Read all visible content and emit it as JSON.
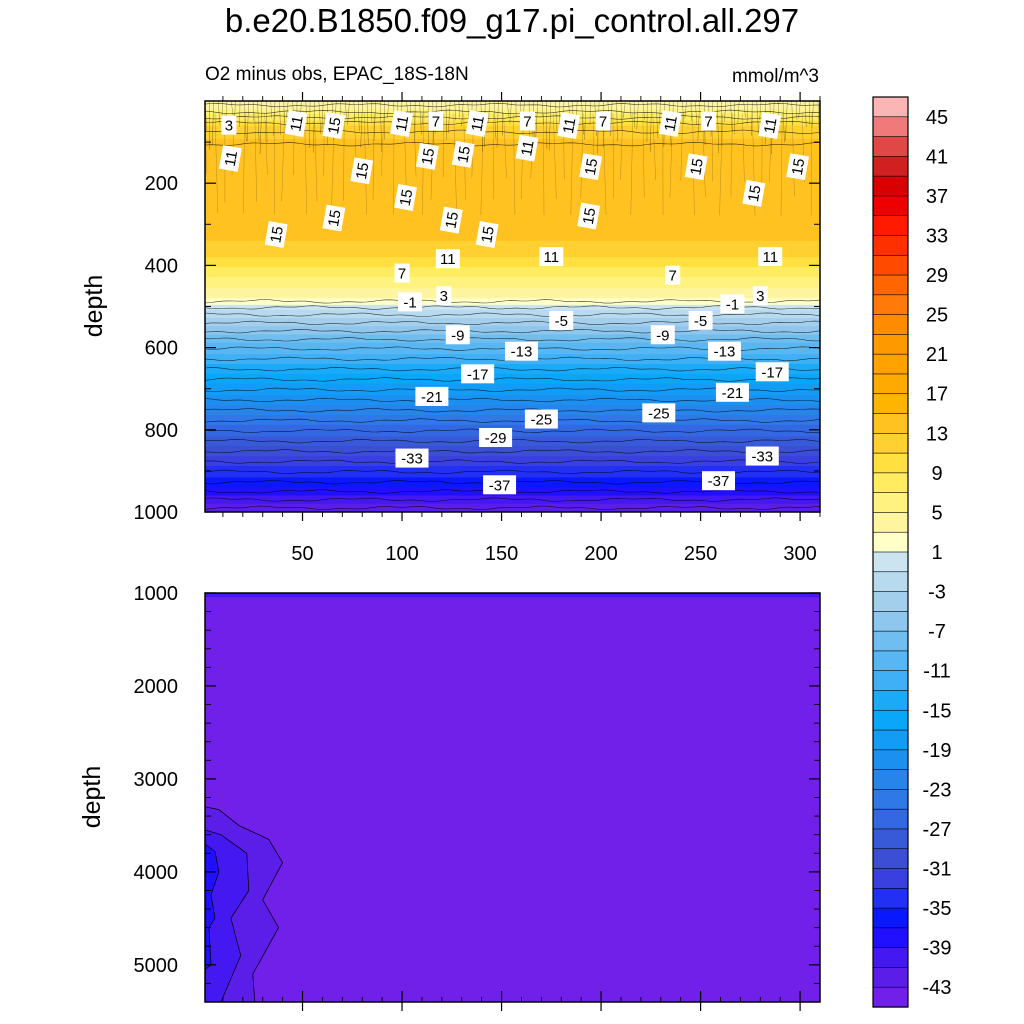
{
  "title": "b.e20.B1850.f09_g17.pi_control.all.297",
  "chart_data": [
    {
      "type": "contour",
      "subtitle": "O2 minus obs, EPAC_18S-18N",
      "units": "mmol/m^3",
      "ylabel": "depth",
      "xlabel": "",
      "xlim": [
        1,
        310
      ],
      "ylim": [
        1000,
        0
      ],
      "xticks": [
        50,
        100,
        150,
        200,
        250,
        300
      ],
      "yticks": [
        200,
        400,
        600,
        800,
        1000
      ],
      "contour_labels": [
        {
          "x": 13,
          "y": 60,
          "v": "3"
        },
        {
          "x": 14,
          "y": 140,
          "v": "11"
        },
        {
          "x": 47,
          "y": 55,
          "v": "11"
        },
        {
          "x": 66,
          "y": 60,
          "v": "15"
        },
        {
          "x": 100,
          "y": 55,
          "v": "11"
        },
        {
          "x": 117,
          "y": 50,
          "v": "7"
        },
        {
          "x": 138,
          "y": 55,
          "v": "11"
        },
        {
          "x": 163,
          "y": 50,
          "v": "7"
        },
        {
          "x": 184,
          "y": 60,
          "v": "11"
        },
        {
          "x": 201,
          "y": 50,
          "v": "7"
        },
        {
          "x": 235,
          "y": 55,
          "v": "11"
        },
        {
          "x": 254,
          "y": 50,
          "v": "7"
        },
        {
          "x": 285,
          "y": 60,
          "v": "11"
        },
        {
          "x": 163,
          "y": 115,
          "v": "11"
        },
        {
          "x": 113,
          "y": 135,
          "v": "15"
        },
        {
          "x": 131,
          "y": 130,
          "v": "15"
        },
        {
          "x": 80,
          "y": 170,
          "v": "15"
        },
        {
          "x": 195,
          "y": 160,
          "v": "15"
        },
        {
          "x": 248,
          "y": 160,
          "v": "15"
        },
        {
          "x": 299,
          "y": 160,
          "v": "15"
        },
        {
          "x": 102,
          "y": 235,
          "v": "15"
        },
        {
          "x": 66,
          "y": 285,
          "v": "15"
        },
        {
          "x": 125,
          "y": 290,
          "v": "15"
        },
        {
          "x": 37,
          "y": 325,
          "v": "15"
        },
        {
          "x": 143,
          "y": 325,
          "v": "15"
        },
        {
          "x": 194,
          "y": 280,
          "v": "15"
        },
        {
          "x": 277,
          "y": 225,
          "v": "15"
        },
        {
          "x": 123,
          "y": 385,
          "v": "11"
        },
        {
          "x": 175,
          "y": 380,
          "v": "11"
        },
        {
          "x": 285,
          "y": 380,
          "v": "11"
        },
        {
          "x": 100,
          "y": 420,
          "v": "7"
        },
        {
          "x": 236,
          "y": 425,
          "v": "7"
        },
        {
          "x": 121,
          "y": 475,
          "v": "3"
        },
        {
          "x": 280,
          "y": 475,
          "v": "3"
        },
        {
          "x": 104,
          "y": 490,
          "v": "-1"
        },
        {
          "x": 266,
          "y": 495,
          "v": "-1"
        },
        {
          "x": 180,
          "y": 535,
          "v": "-5"
        },
        {
          "x": 250,
          "y": 535,
          "v": "-5"
        },
        {
          "x": 128,
          "y": 570,
          "v": "-9"
        },
        {
          "x": 231,
          "y": 570,
          "v": "-9"
        },
        {
          "x": 160,
          "y": 610,
          "v": "-13"
        },
        {
          "x": 262,
          "y": 610,
          "v": "-13"
        },
        {
          "x": 138,
          "y": 665,
          "v": "-17"
        },
        {
          "x": 286,
          "y": 660,
          "v": "-17"
        },
        {
          "x": 115,
          "y": 720,
          "v": "-21"
        },
        {
          "x": 266,
          "y": 710,
          "v": "-21"
        },
        {
          "x": 170,
          "y": 775,
          "v": "-25"
        },
        {
          "x": 229,
          "y": 760,
          "v": "-25"
        },
        {
          "x": 147,
          "y": 820,
          "v": "-29"
        },
        {
          "x": 105,
          "y": 870,
          "v": "-33"
        },
        {
          "x": 281,
          "y": 865,
          "v": "-33"
        },
        {
          "x": 149,
          "y": 935,
          "v": "-37"
        },
        {
          "x": 259,
          "y": 925,
          "v": "-37"
        }
      ]
    },
    {
      "type": "contour",
      "ylabel": "depth",
      "xlim": [
        1,
        310
      ],
      "ylim": [
        1000,
        5400
      ],
      "yticks": [
        1000,
        2000,
        3000,
        4000,
        5000
      ],
      "background_level": "< -45",
      "anomaly_depths": [
        3300,
        5400
      ],
      "anomaly_min": -43
    }
  ],
  "colorbar": {
    "labels": [
      "45",
      "41",
      "37",
      "33",
      "29",
      "25",
      "21",
      "17",
      "13",
      "9",
      "5",
      "1",
      "-3",
      "-7",
      "-11",
      "-15",
      "-19",
      "-23",
      "-27",
      "-31",
      "-35",
      "-39",
      "-43"
    ],
    "colors": [
      "#fbb5b5",
      "#f07a7a",
      "#e04848",
      "#d02020",
      "#d80000",
      "#ee0000",
      "#ff1a00",
      "#ff3000",
      "#ff4a00",
      "#ff6600",
      "#ff7a08",
      "#ff8c00",
      "#ff9900",
      "#ffa200",
      "#ffaa00",
      "#ffb400",
      "#ffc220",
      "#ffd030",
      "#ffe040",
      "#ffec60",
      "#fff27e",
      "#fff5a0",
      "#ffffc8",
      "#cce4f0",
      "#b8daee",
      "#a4cfec",
      "#8ec6ed",
      "#70bdef",
      "#58b6f2",
      "#40b0f6",
      "#1aaaf8",
      "#0aa6fa",
      "#129cf6",
      "#1c90f0",
      "#2684ea",
      "#2e78e8",
      "#3468e2",
      "#385ad8",
      "#3c4ed4",
      "#3a40e0",
      "#2230f4",
      "#0a18fe",
      "#2010ff",
      "#4418f0",
      "#5a1ee8",
      "#7020e8"
    ]
  }
}
